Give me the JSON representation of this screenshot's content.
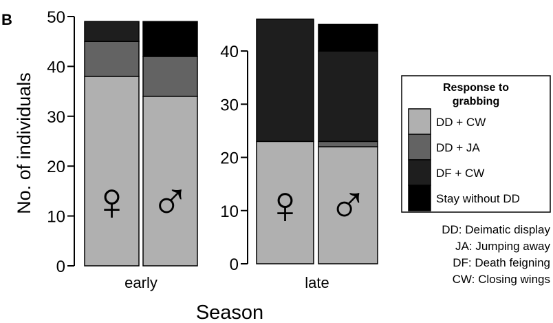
{
  "panel_label": "B",
  "ylabel": "No. of individuals",
  "xlabel": "Season",
  "legend": {
    "title_line1": "Response to",
    "title_line2": "grabbing",
    "items": [
      "DD + CW",
      "DD + JA",
      "DF + CW",
      "Stay without DD"
    ]
  },
  "abbreviations": [
    "DD: Deimatic display",
    "JA: Jumping away",
    "DF: Death feigning",
    "CW: Closing wings"
  ],
  "colors": {
    "DD + CW": "#b0b0b0",
    "DD + JA": "#636363",
    "DF + CW": "#1e1e1e",
    "Stay without DD": "#000000"
  },
  "sex_symbols": {
    "female": "♀",
    "male": "♂"
  },
  "chart_data": [
    {
      "type": "bar",
      "stacked": true,
      "xlabel": "early",
      "categories": [
        "female",
        "male"
      ],
      "ylim": [
        0,
        50
      ],
      "yticks": [
        0,
        10,
        20,
        30,
        40,
        50
      ],
      "series": [
        {
          "name": "DD + CW",
          "values": [
            38,
            34
          ]
        },
        {
          "name": "DD + JA",
          "values": [
            7,
            8
          ]
        },
        {
          "name": "DF + CW",
          "values": [
            4,
            0
          ]
        },
        {
          "name": "Stay without DD",
          "values": [
            0,
            7
          ]
        }
      ]
    },
    {
      "type": "bar",
      "stacked": true,
      "xlabel": "late",
      "categories": [
        "female",
        "male"
      ],
      "ylim": [
        0,
        47
      ],
      "yticks": [
        0,
        10,
        20,
        30,
        40
      ],
      "series": [
        {
          "name": "DD + CW",
          "values": [
            23,
            22
          ]
        },
        {
          "name": "DD + JA",
          "values": [
            0,
            1
          ]
        },
        {
          "name": "DF + CW",
          "values": [
            23,
            17
          ]
        },
        {
          "name": "Stay without DD",
          "values": [
            0,
            5
          ]
        }
      ]
    }
  ]
}
